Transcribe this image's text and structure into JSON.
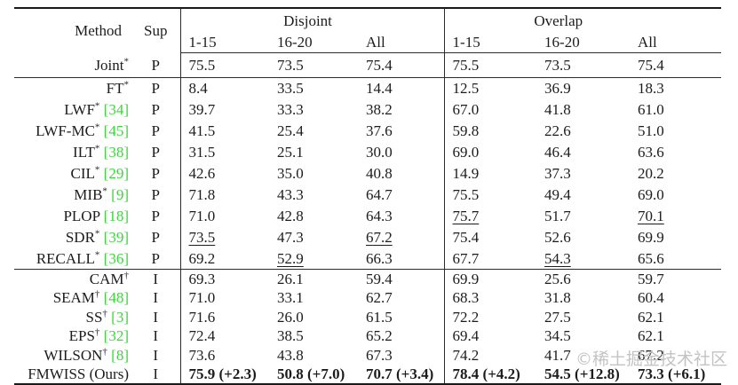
{
  "header": {
    "method": "Method",
    "sup": "Sup",
    "groups": [
      {
        "label": "Disjoint",
        "cols": [
          "1-15",
          "16-20",
          "All"
        ]
      },
      {
        "label": "Overlap",
        "cols": [
          "1-15",
          "16-20",
          "All"
        ]
      }
    ]
  },
  "rows": [
    {
      "name": "Joint",
      "mark": "*",
      "cite": null,
      "sup": "P",
      "cells": [
        "75.5",
        "73.5",
        "75.4",
        "75.5",
        "73.5",
        "75.4"
      ],
      "underline": [],
      "bold": false,
      "section": "joint"
    },
    {
      "name": "FT",
      "mark": "*",
      "cite": null,
      "sup": "P",
      "cells": [
        "8.4",
        "33.5",
        "14.4",
        "12.5",
        "36.9",
        "18.3"
      ],
      "underline": [],
      "bold": false,
      "section": "p"
    },
    {
      "name": "LWF",
      "mark": "*",
      "cite": "34",
      "sup": "P",
      "cells": [
        "39.7",
        "33.3",
        "38.2",
        "67.0",
        "41.8",
        "61.0"
      ],
      "underline": [],
      "bold": false,
      "section": "p"
    },
    {
      "name": "LWF-MC",
      "mark": "*",
      "cite": "45",
      "sup": "P",
      "cells": [
        "41.5",
        "25.4",
        "37.6",
        "59.8",
        "22.6",
        "51.0"
      ],
      "underline": [],
      "bold": false,
      "section": "p"
    },
    {
      "name": "ILT",
      "mark": "*",
      "cite": "38",
      "sup": "P",
      "cells": [
        "31.5",
        "25.1",
        "30.0",
        "69.0",
        "46.4",
        "63.6"
      ],
      "underline": [],
      "bold": false,
      "section": "p"
    },
    {
      "name": "CIL",
      "mark": "*",
      "cite": "29",
      "sup": "P",
      "cells": [
        "42.6",
        "35.0",
        "40.8",
        "14.9",
        "37.3",
        "20.2"
      ],
      "underline": [],
      "bold": false,
      "section": "p"
    },
    {
      "name": "MIB",
      "mark": "*",
      "cite": "9",
      "sup": "P",
      "cells": [
        "71.8",
        "43.3",
        "64.7",
        "75.5",
        "49.4",
        "69.0"
      ],
      "underline": [],
      "bold": false,
      "section": "p"
    },
    {
      "name": "PLOP",
      "mark": null,
      "cite": "18",
      "sup": "P",
      "cells": [
        "71.0",
        "42.8",
        "64.3",
        "75.7",
        "51.7",
        "70.1"
      ],
      "underline": [
        3,
        5
      ],
      "bold": false,
      "section": "p"
    },
    {
      "name": "SDR",
      "mark": "*",
      "cite": "39",
      "sup": "P",
      "cells": [
        "73.5",
        "47.3",
        "67.2",
        "75.4",
        "52.6",
        "69.9"
      ],
      "underline": [
        0,
        2
      ],
      "bold": false,
      "section": "p"
    },
    {
      "name": "RECALL",
      "mark": "*",
      "cite": "36",
      "sup": "P",
      "cells": [
        "69.2",
        "52.9",
        "66.3",
        "67.7",
        "54.3",
        "65.6"
      ],
      "underline": [
        1,
        4
      ],
      "bold": false,
      "section": "p"
    },
    {
      "name": "CAM",
      "mark": "†",
      "cite": null,
      "sup": "I",
      "cells": [
        "69.3",
        "26.1",
        "59.4",
        "69.9",
        "25.6",
        "59.7"
      ],
      "underline": [],
      "bold": false,
      "section": "i",
      "rule_above": true
    },
    {
      "name": "SEAM",
      "mark": "†",
      "cite": "48",
      "sup": "I",
      "cells": [
        "71.0",
        "33.1",
        "62.7",
        "68.3",
        "31.8",
        "60.4"
      ],
      "underline": [],
      "bold": false,
      "section": "i"
    },
    {
      "name": "SS",
      "mark": "†",
      "cite": "3",
      "sup": "I",
      "cells": [
        "71.6",
        "26.0",
        "61.5",
        "72.2",
        "27.5",
        "62.1"
      ],
      "underline": [],
      "bold": false,
      "section": "i"
    },
    {
      "name": "EPS",
      "mark": "†",
      "cite": "32",
      "sup": "I",
      "cells": [
        "72.4",
        "38.5",
        "65.2",
        "69.4",
        "34.5",
        "62.1"
      ],
      "underline": [],
      "bold": false,
      "section": "i"
    },
    {
      "name": "WILSON",
      "mark": "†",
      "cite": "8",
      "sup": "I",
      "cells": [
        "73.6",
        "43.8",
        "67.3",
        "74.2",
        "41.7",
        "67.2"
      ],
      "underline": [],
      "bold": false,
      "section": "i"
    },
    {
      "name": "FMWISS (Ours)",
      "mark": null,
      "cite": null,
      "sup": "I",
      "cells": [
        "75.9 (+2.3)",
        "50.8 (+7.0)",
        "70.7 (+3.4)",
        "78.4 (+4.2)",
        "54.5 (+12.8)",
        "73.3 (+6.1)"
      ],
      "underline": [],
      "bold": true,
      "section": "i"
    }
  ],
  "watermark": {
    "text": "©稀土掘金技术社区"
  },
  "colors": {
    "citation_green": "#3cd63c",
    "watermark_gray": "#c3c3c3"
  }
}
